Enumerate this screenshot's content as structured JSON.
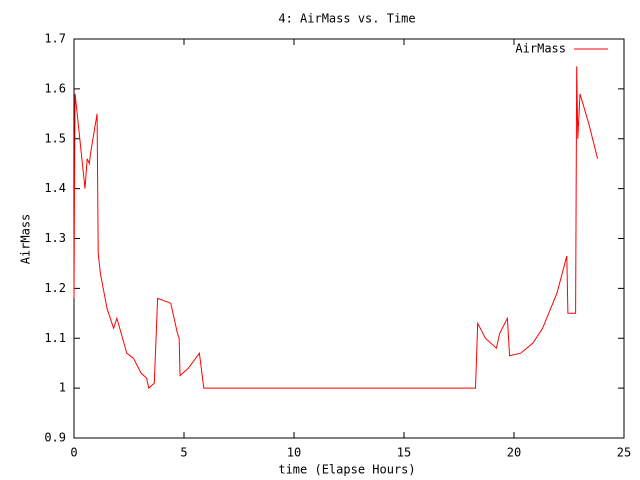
{
  "chart_data": {
    "type": "line",
    "title": "4: AirMass vs. Time",
    "xlabel": "time (Elapse Hours)",
    "ylabel": "AirMass",
    "x": [
      0,
      0.02,
      0.05,
      0.5,
      0.6,
      0.7,
      0.75,
      1.05,
      1.1,
      1.2,
      1.5,
      1.8,
      1.95,
      2.4,
      2.7,
      3.05,
      3.3,
      3.4,
      3.65,
      3.8,
      4.1,
      4.4,
      4.7,
      4.78,
      4.82,
      5.2,
      5.7,
      5.9,
      18.25,
      18.35,
      18.7,
      19.2,
      19.35,
      19.7,
      19.8,
      20.3,
      20.85,
      21.3,
      21.95,
      22.4,
      22.45,
      22.8,
      22.85,
      22.9,
      23.0,
      23.4,
      23.8
    ],
    "series": [
      {
        "name": "AirMass",
        "color": "#ff0000",
        "values": [
          1.18,
          1.38,
          1.59,
          1.4,
          1.46,
          1.45,
          1.47,
          1.55,
          1.27,
          1.23,
          1.16,
          1.12,
          1.14,
          1.07,
          1.06,
          1.03,
          1.02,
          1.0,
          1.01,
          1.18,
          1.175,
          1.17,
          1.11,
          1.1,
          1.025,
          1.04,
          1.07,
          1.0,
          1.0,
          1.13,
          1.1,
          1.08,
          1.11,
          1.14,
          1.065,
          1.07,
          1.09,
          1.12,
          1.19,
          1.265,
          1.15,
          1.15,
          1.645,
          1.5,
          1.59,
          1.53,
          1.46
        ]
      }
    ],
    "xlim": [
      0,
      25
    ],
    "xticks": [
      0,
      5,
      10,
      15,
      20,
      25
    ],
    "ylim": [
      0.9,
      1.7
    ],
    "yticks": [
      0.9,
      1,
      1.1,
      1.2,
      1.3,
      1.4,
      1.5,
      1.6,
      1.7
    ],
    "legend": "top right"
  }
}
